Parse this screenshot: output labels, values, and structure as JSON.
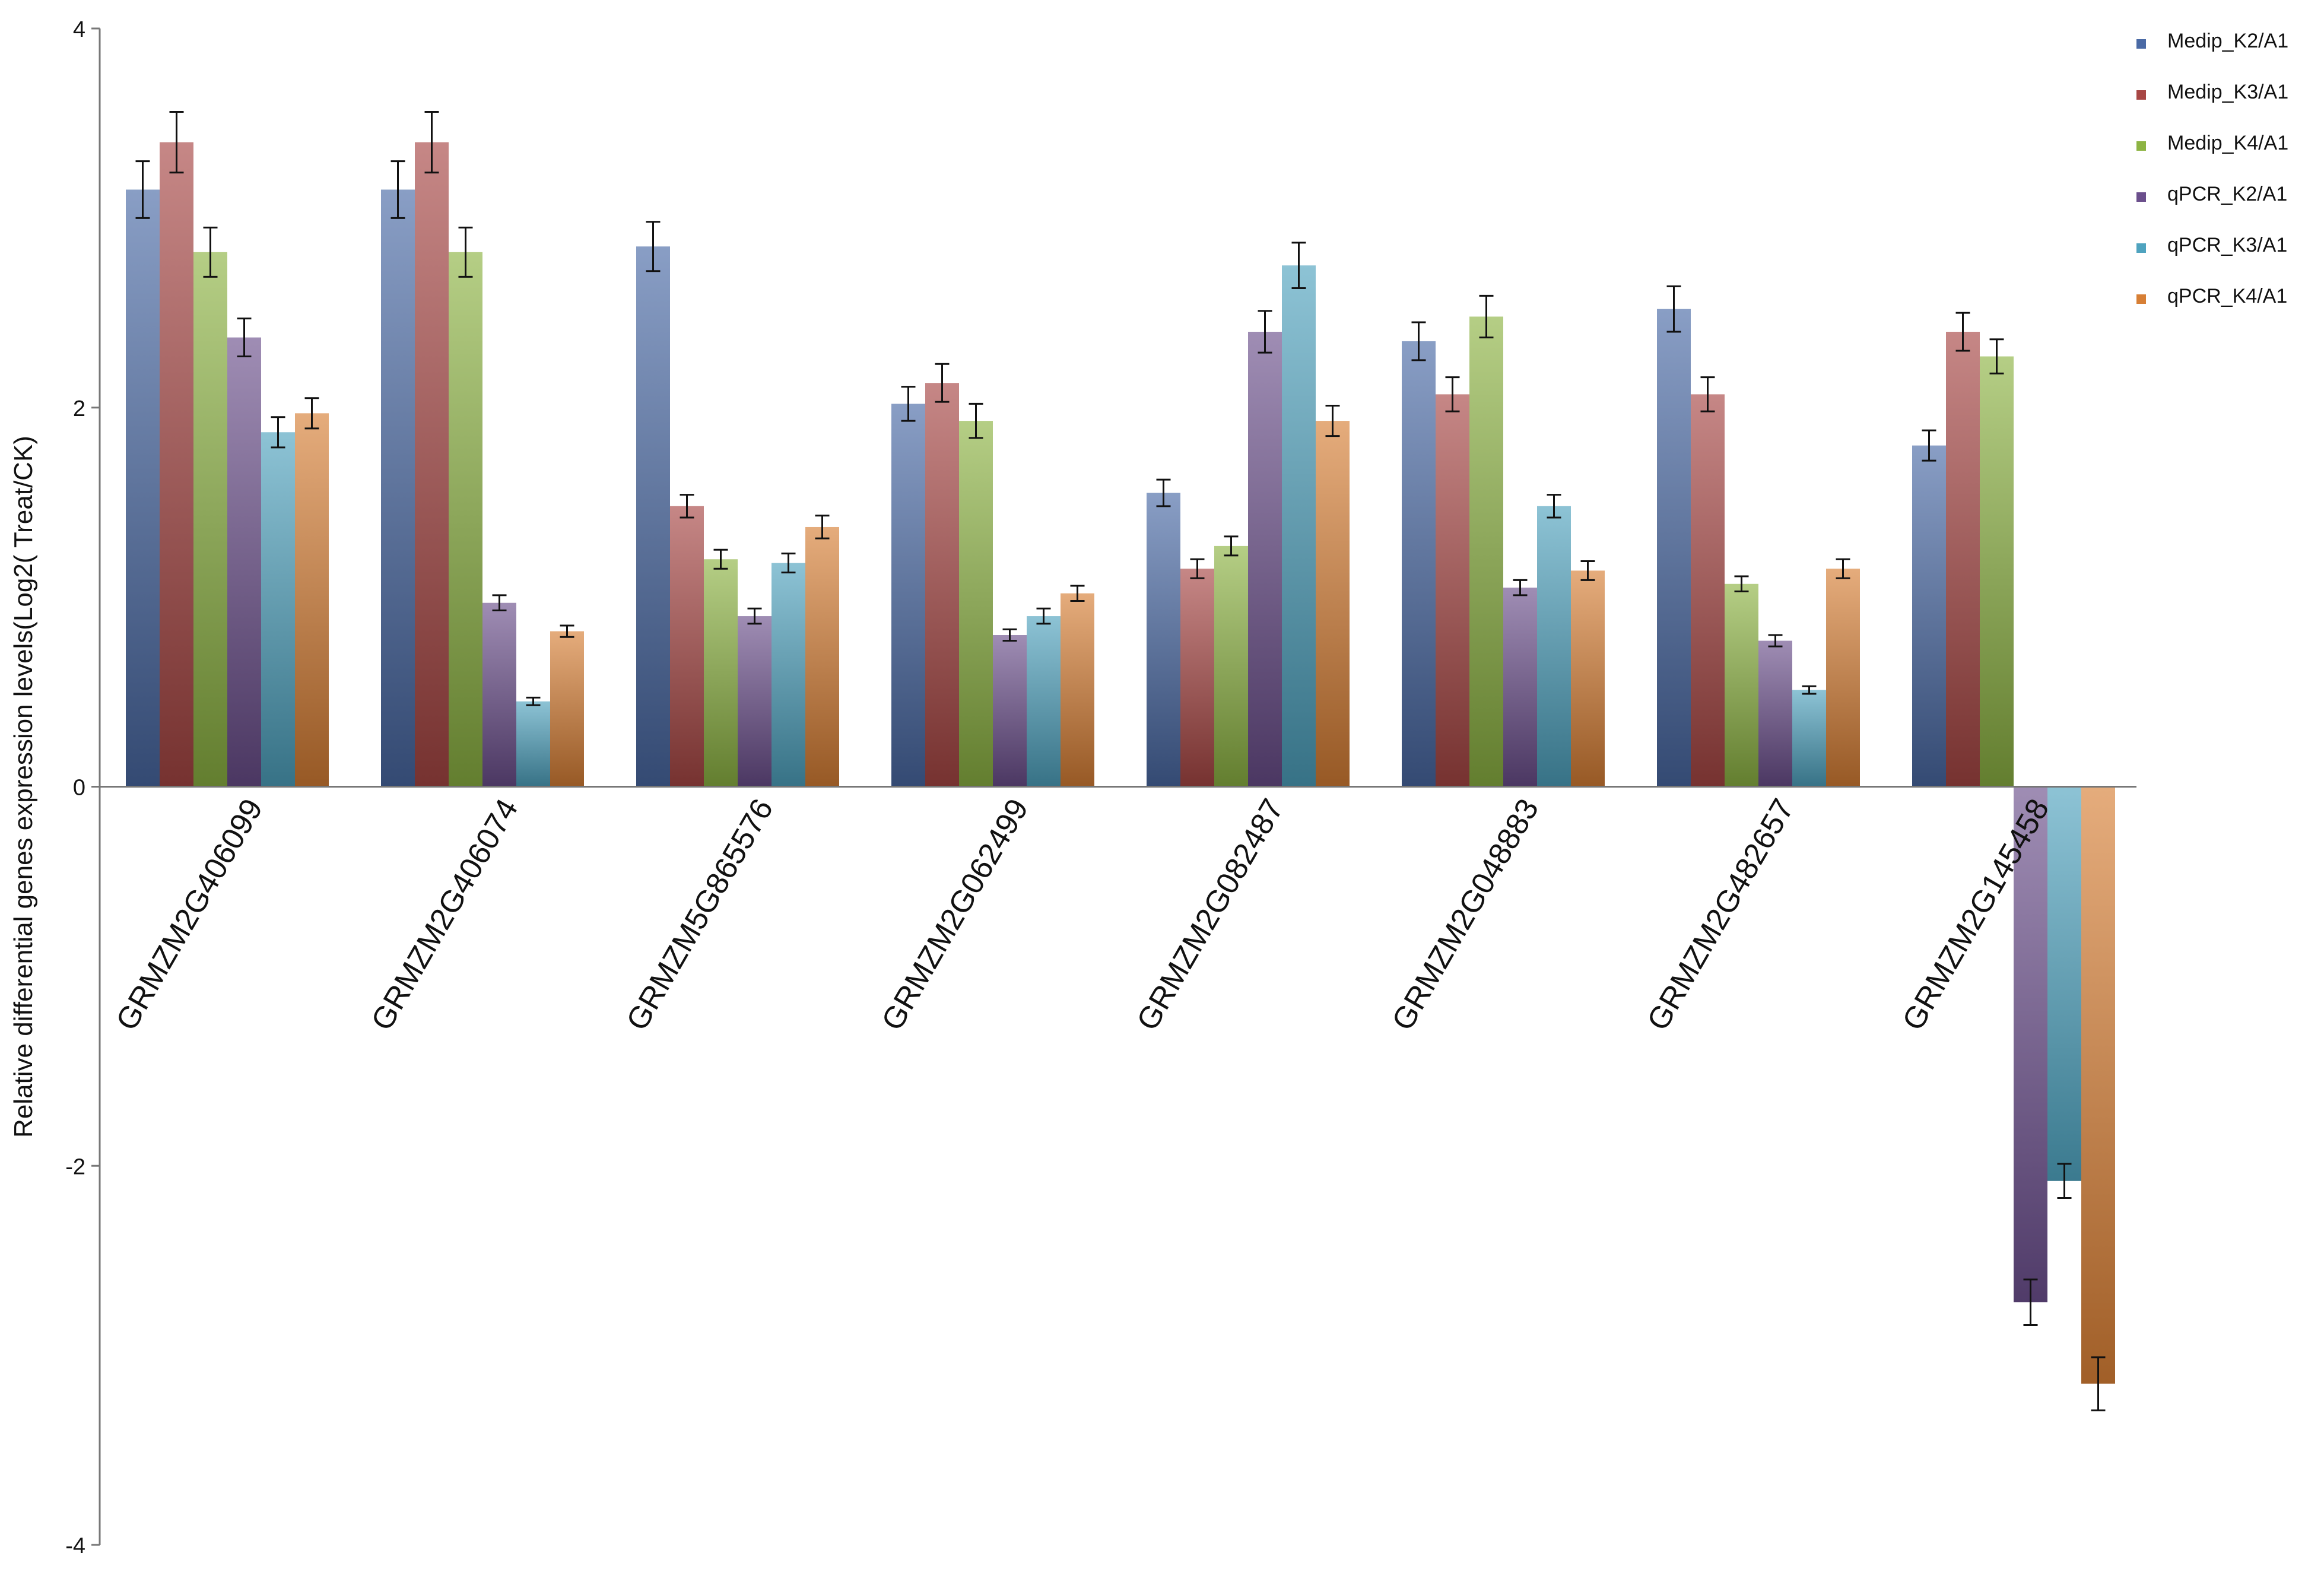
{
  "chart_data": {
    "type": "bar",
    "title": "",
    "xlabel": "",
    "ylabel": "Relative differential genes expression levels(Log2( Treat/CK)",
    "ylim": [
      -4,
      4
    ],
    "yticks": [
      4,
      2,
      0,
      -2,
      -4
    ],
    "legend_position": "top-right",
    "categories": [
      "GRMZM2G406099",
      "GRMZM2G406074",
      "GRMZM5G865576",
      "GRMZM2G062499",
      "GRMZM2G082487",
      "GRMZM2G048883",
      "GRMZM2G482657",
      "GRMZM2G145458"
    ],
    "series": [
      {
        "name": "Medip_K2/A1",
        "color": "#4a6aa5",
        "values": [
          3.15,
          3.15,
          2.85,
          2.02,
          1.55,
          2.35,
          2.52,
          1.8
        ],
        "errors": [
          0.15,
          0.15,
          0.13,
          0.09,
          0.07,
          0.1,
          0.12,
          0.08
        ]
      },
      {
        "name": "Medip_K3/A1",
        "color": "#a84745",
        "values": [
          3.4,
          3.4,
          1.48,
          2.13,
          1.15,
          2.07,
          2.07,
          2.4
        ],
        "errors": [
          0.16,
          0.16,
          0.06,
          0.1,
          0.05,
          0.09,
          0.09,
          0.1
        ]
      },
      {
        "name": "Medip_K4/A1",
        "color": "#8db443",
        "values": [
          2.82,
          2.82,
          1.2,
          1.93,
          1.27,
          2.48,
          1.07,
          2.27
        ],
        "errors": [
          0.13,
          0.13,
          0.05,
          0.09,
          0.05,
          0.11,
          0.04,
          0.09
        ]
      },
      {
        "name": "qPCR_K2/A1",
        "color": "#6b4f8c",
        "values": [
          2.37,
          0.97,
          0.9,
          0.8,
          2.4,
          1.05,
          0.77,
          -2.72
        ],
        "errors": [
          0.1,
          0.04,
          0.04,
          0.03,
          0.11,
          0.04,
          0.03,
          0.12
        ]
      },
      {
        "name": "qPCR_K3/A1",
        "color": "#4fa3bf",
        "values": [
          1.87,
          0.45,
          1.18,
          0.9,
          2.75,
          1.48,
          0.51,
          -2.08
        ],
        "errors": [
          0.08,
          0.02,
          0.05,
          0.04,
          0.12,
          0.06,
          0.02,
          0.09
        ]
      },
      {
        "name": "qPCR_K4/A1",
        "color": "#d77f35",
        "values": [
          1.97,
          0.82,
          1.37,
          1.02,
          1.93,
          1.14,
          1.15,
          -3.15
        ],
        "errors": [
          0.08,
          0.03,
          0.06,
          0.04,
          0.08,
          0.05,
          0.05,
          0.14
        ]
      }
    ]
  }
}
